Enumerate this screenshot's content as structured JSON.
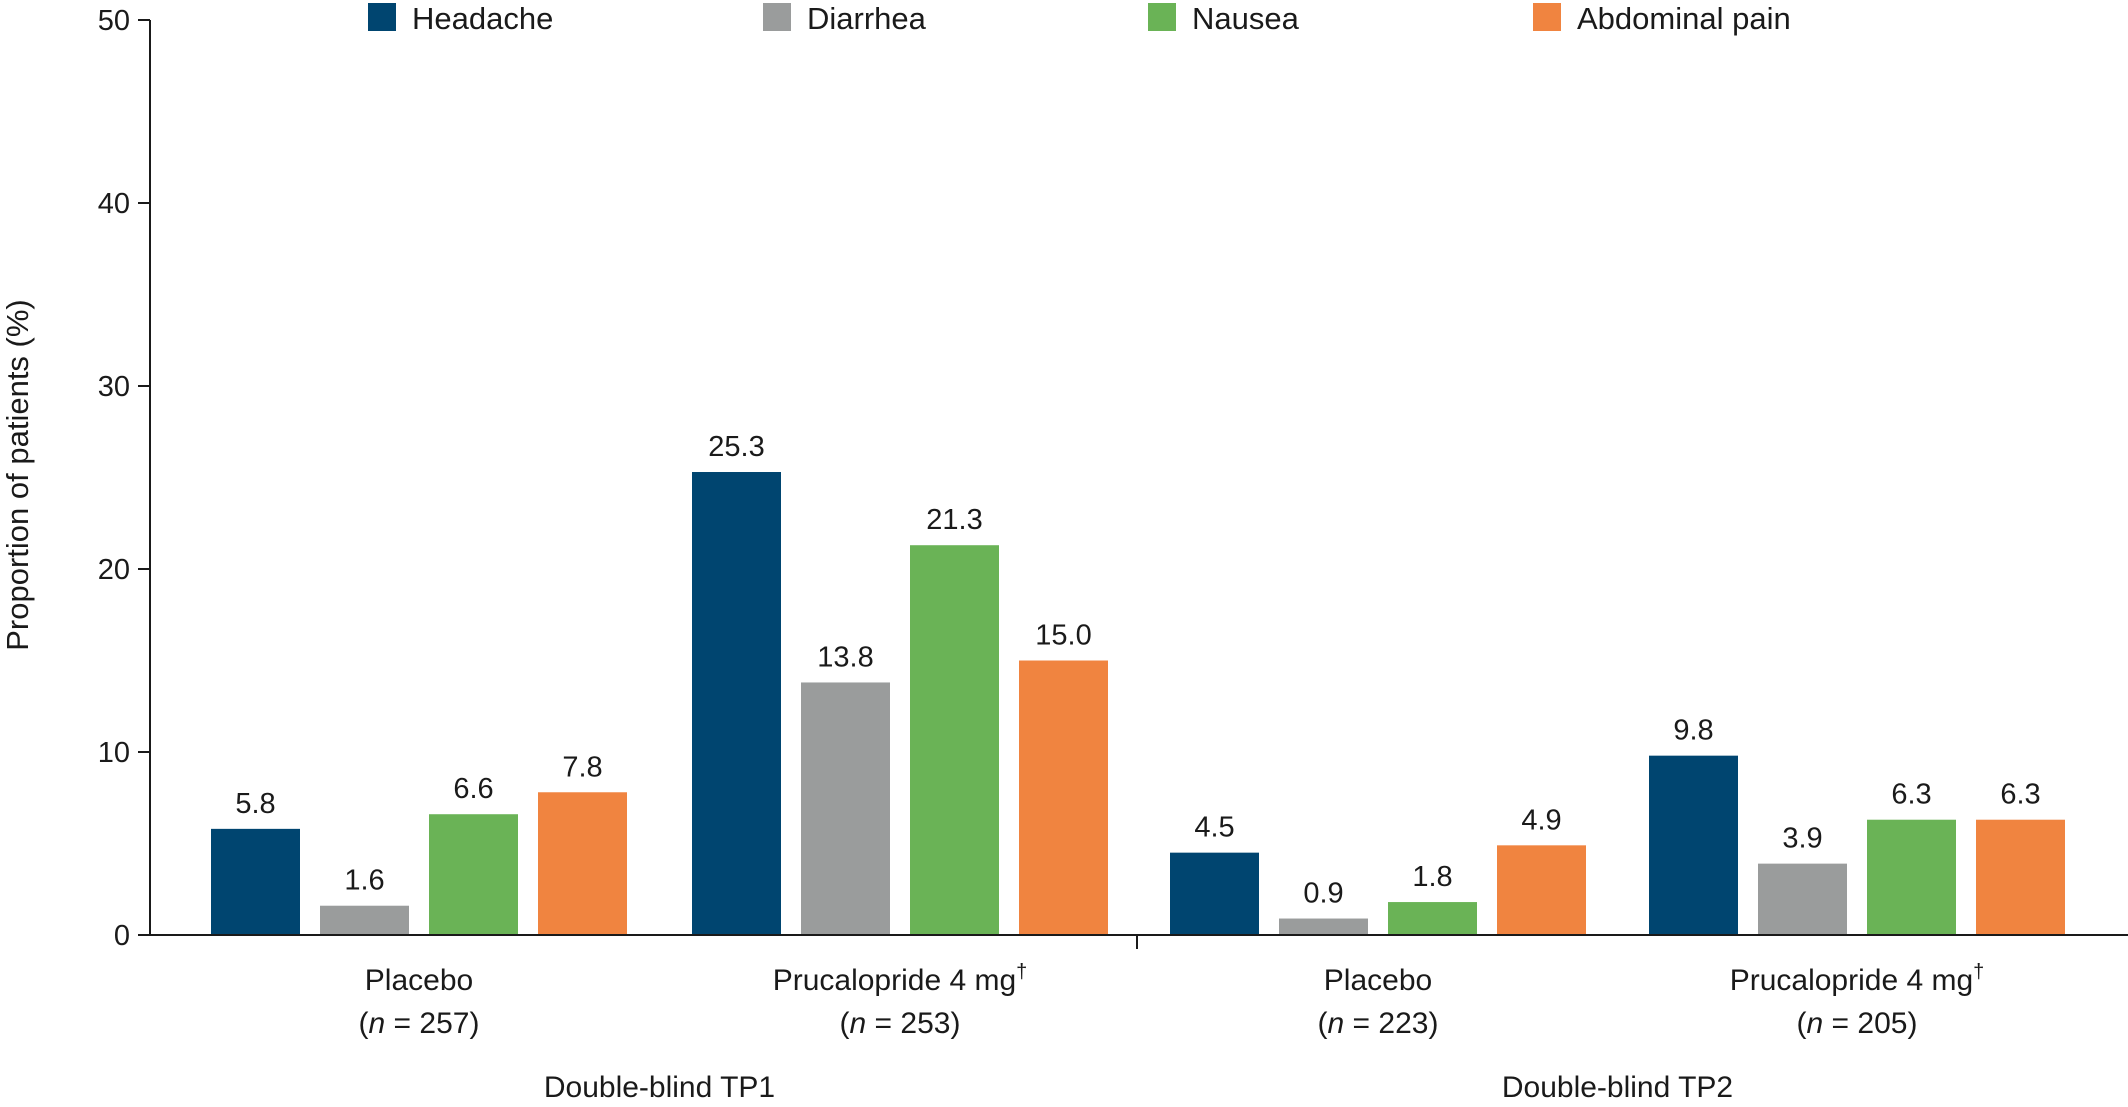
{
  "chart_data": {
    "type": "bar",
    "title": "",
    "ylabel": "Proportion of patients (%)",
    "ylim": [
      0,
      50
    ],
    "yticks": [
      0,
      10,
      20,
      30,
      40,
      50
    ],
    "grid": false,
    "legend_position": "top",
    "series": [
      {
        "name": "Headache",
        "color": "#004570",
        "values": [
          5.8,
          25.3,
          4.5,
          9.8
        ],
        "labels": [
          "5.8",
          "25.3",
          "4.5",
          "9.8"
        ]
      },
      {
        "name": "Diarrhea",
        "color": "#9a9c9c",
        "values": [
          1.6,
          13.8,
          0.9,
          3.9
        ],
        "labels": [
          "1.6",
          "13.8",
          "0.9",
          "3.9"
        ]
      },
      {
        "name": "Nausea",
        "color": "#6ab356",
        "values": [
          6.6,
          21.3,
          1.8,
          6.3
        ],
        "labels": [
          "6.6",
          "21.3",
          "1.8",
          "6.3"
        ]
      },
      {
        "name": "Abdominal pain",
        "color": "#f08440",
        "values": [
          7.8,
          15.0,
          4.9,
          6.3
        ],
        "labels": [
          "7.8",
          "15.0",
          "4.9",
          "6.3"
        ]
      }
    ],
    "categories": [
      {
        "line1": "Placebo",
        "line2_prefix": "(",
        "line2_n": "n",
        "line2_suffix": " = 257)"
      },
      {
        "line1": "Prucalopride 4 mg",
        "line1_sup": "†",
        "line2_prefix": "(",
        "line2_n": "n",
        "line2_suffix": " = 253)"
      },
      {
        "line1": "Placebo",
        "line2_prefix": "(",
        "line2_n": "n",
        "line2_suffix": " = 223)"
      },
      {
        "line1": "Prucalopride 4 mg",
        "line1_sup": "†",
        "line2_prefix": "(",
        "line2_n": "n",
        "line2_suffix": " = 205)"
      }
    ],
    "groups": [
      {
        "label": "Double-blind TP1",
        "categories": [
          0,
          1
        ]
      },
      {
        "label": "Double-blind TP2",
        "categories": [
          2,
          3
        ]
      }
    ]
  }
}
